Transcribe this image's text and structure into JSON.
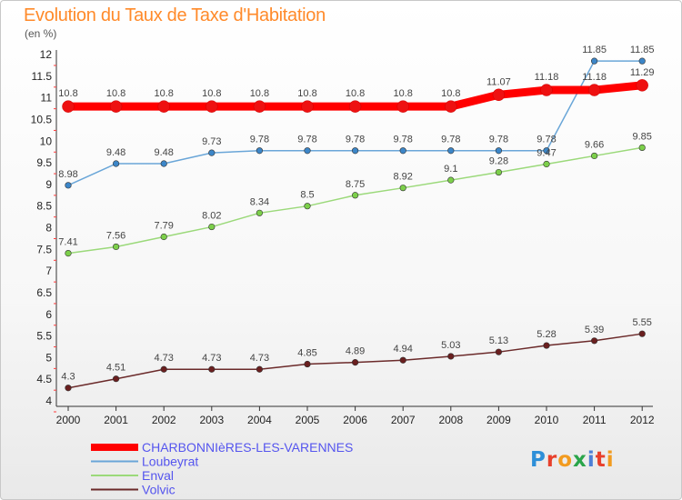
{
  "page": {
    "title": "Evolution du Taux de Taxe d'Habitation",
    "unit": "(en %)"
  },
  "logo": {
    "text": "Proxiti",
    "letter_colors": [
      "#2e8fd8",
      "#e8402c",
      "#f29b1f",
      "#2aa54a",
      "#4e7fd6",
      "#e8402c",
      "#f29b1f"
    ]
  },
  "chart_data": {
    "type": "line",
    "title": "Evolution du Taux de Taxe d'Habitation",
    "subtitle": "(en %)",
    "xlabel": "",
    "ylabel": "",
    "x": [
      "2000",
      "2001",
      "2002",
      "2003",
      "2004",
      "2005",
      "2006",
      "2007",
      "2008",
      "2009",
      "2010",
      "2011",
      "2012"
    ],
    "ylim": [
      4,
      12
    ],
    "yticks": [
      4,
      4.5,
      5,
      5.5,
      6,
      6.5,
      7,
      7.5,
      8,
      8.5,
      9,
      9.5,
      10,
      10.5,
      11,
      11.5,
      12
    ],
    "ytick_labels": [
      "4",
      "4.5",
      "5",
      "5.5",
      "6",
      "6.5",
      "7",
      "7.5",
      "8",
      "8.5",
      "9",
      "9.5",
      "10",
      "10.5",
      "11",
      "11.5",
      "12"
    ],
    "grid": false,
    "legend_position": "bottom-left",
    "series": [
      {
        "name": "CHARBONNIèRES-LES-VARENNES",
        "color": "#ff0000",
        "marker_color": "#ee1111",
        "legend_text_color": "#5555ee",
        "emphasis": true,
        "values": [
          10.8,
          10.8,
          10.8,
          10.8,
          10.8,
          10.8,
          10.8,
          10.8,
          10.8,
          11.07,
          11.18,
          11.18,
          11.29
        ],
        "labels": [
          "10.8",
          "10.8",
          "10.8",
          "10.8",
          "10.8",
          "10.8",
          "10.8",
          "10.8",
          "10.8",
          "11.07",
          "11.18",
          "11.18",
          "11.29"
        ]
      },
      {
        "name": "Loubeyrat",
        "color": "#6aa6d8",
        "marker_color": "#3c86c8",
        "legend_text_color": "#5555ee",
        "emphasis": false,
        "values": [
          8.98,
          9.48,
          9.48,
          9.73,
          9.78,
          9.78,
          9.78,
          9.78,
          9.78,
          9.78,
          9.78,
          11.85,
          11.85
        ],
        "labels": [
          "8.98",
          "9.48",
          "9.48",
          "9.73",
          "9.78",
          "9.78",
          "9.78",
          "9.78",
          "9.78",
          "9.78",
          "9.78",
          "11.85",
          "11.85"
        ]
      },
      {
        "name": "Enval",
        "color": "#9bd97a",
        "marker_color": "#7ccf4a",
        "legend_text_color": "#5555ee",
        "emphasis": false,
        "values": [
          7.41,
          7.56,
          7.79,
          8.02,
          8.34,
          8.5,
          8.75,
          8.92,
          9.1,
          9.28,
          9.47,
          9.66,
          9.85
        ],
        "labels": [
          "7.41",
          "7.56",
          "7.79",
          "8.02",
          "8.34",
          "8.5",
          "8.75",
          "8.92",
          "9.1",
          "9.28",
          "9.47",
          "9.66",
          "9.85"
        ]
      },
      {
        "name": "Volvic",
        "color": "#6b2a2a",
        "marker_color": "#6a1f1f",
        "legend_text_color": "#5555ee",
        "emphasis": false,
        "values": [
          4.3,
          4.51,
          4.73,
          4.73,
          4.73,
          4.85,
          4.89,
          4.94,
          5.03,
          5.13,
          5.28,
          5.39,
          5.55
        ],
        "labels": [
          "4.3",
          "4.51",
          "4.73",
          "4.73",
          "4.73",
          "4.85",
          "4.89",
          "4.94",
          "5.03",
          "5.13",
          "5.28",
          "5.39",
          "5.55"
        ]
      }
    ]
  }
}
